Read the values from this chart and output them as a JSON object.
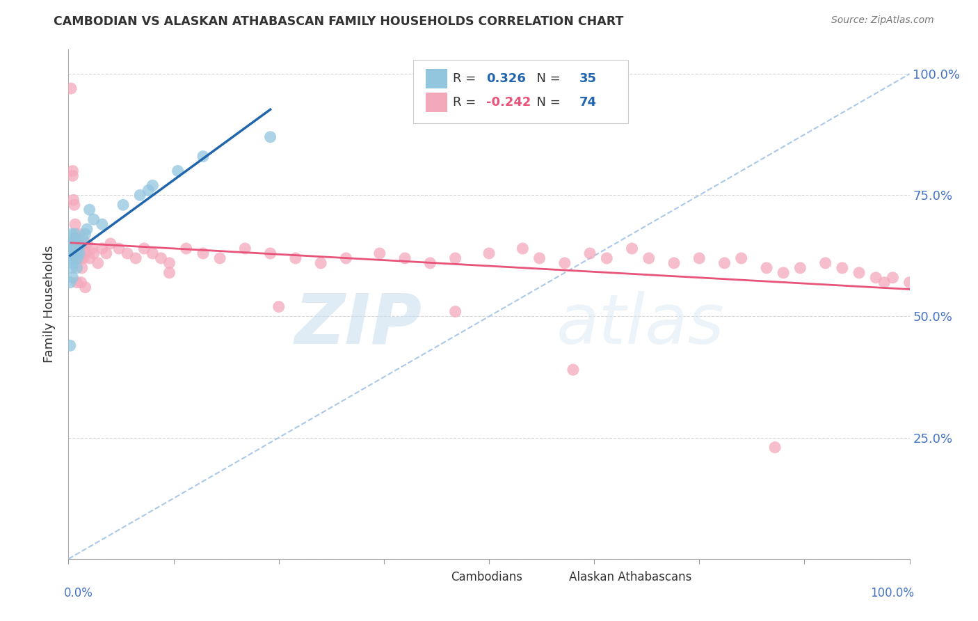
{
  "title": "CAMBODIAN VS ALASKAN ATHABASCAN FAMILY HOUSEHOLDS CORRELATION CHART",
  "source": "Source: ZipAtlas.com",
  "ylabel": "Family Households",
  "legend_blue_r": "0.326",
  "legend_blue_n": "35",
  "legend_pink_r": "-0.242",
  "legend_pink_n": "74",
  "legend_label_blue": "Cambodians",
  "legend_label_pink": "Alaskan Athabascans",
  "blue_color": "#92c5de",
  "pink_color": "#f4a9bb",
  "trend_blue_color": "#2166ac",
  "trend_pink_color": "#e8537a",
  "dashed_line_color": "#aac8e8",
  "watermark_zip": "ZIP",
  "watermark_atlas": "atlas",
  "blue_x": [
    0.002,
    0.002,
    0.003,
    0.003,
    0.004,
    0.004,
    0.005,
    0.005,
    0.005,
    0.006,
    0.006,
    0.007,
    0.007,
    0.008,
    0.008,
    0.009,
    0.01,
    0.01,
    0.011,
    0.012,
    0.013,
    0.015,
    0.017,
    0.02,
    0.022,
    0.025,
    0.03,
    0.04,
    0.065,
    0.085,
    0.095,
    0.1,
    0.13,
    0.16,
    0.24
  ],
  "blue_y": [
    0.44,
    0.57,
    0.62,
    0.65,
    0.6,
    0.67,
    0.64,
    0.58,
    0.61,
    0.63,
    0.65,
    0.63,
    0.66,
    0.62,
    0.67,
    0.65,
    0.64,
    0.6,
    0.62,
    0.64,
    0.63,
    0.65,
    0.66,
    0.67,
    0.68,
    0.72,
    0.7,
    0.69,
    0.73,
    0.75,
    0.76,
    0.77,
    0.8,
    0.83,
    0.87
  ],
  "pink_x": [
    0.003,
    0.005,
    0.006,
    0.007,
    0.008,
    0.009,
    0.01,
    0.011,
    0.012,
    0.013,
    0.014,
    0.015,
    0.016,
    0.018,
    0.019,
    0.02,
    0.022,
    0.025,
    0.028,
    0.03,
    0.035,
    0.04,
    0.045,
    0.05,
    0.06,
    0.07,
    0.08,
    0.09,
    0.1,
    0.11,
    0.12,
    0.14,
    0.16,
    0.18,
    0.21,
    0.24,
    0.27,
    0.3,
    0.33,
    0.37,
    0.4,
    0.43,
    0.46,
    0.5,
    0.54,
    0.56,
    0.59,
    0.62,
    0.64,
    0.67,
    0.69,
    0.72,
    0.75,
    0.78,
    0.8,
    0.83,
    0.85,
    0.87,
    0.9,
    0.92,
    0.94,
    0.96,
    0.97,
    0.98,
    1.0,
    0.005,
    0.01,
    0.015,
    0.02,
    0.12,
    0.25,
    0.46,
    0.6,
    0.84
  ],
  "pink_y": [
    0.97,
    0.79,
    0.74,
    0.73,
    0.69,
    0.66,
    0.62,
    0.63,
    0.65,
    0.67,
    0.64,
    0.62,
    0.6,
    0.62,
    0.64,
    0.63,
    0.65,
    0.62,
    0.64,
    0.63,
    0.61,
    0.64,
    0.63,
    0.65,
    0.64,
    0.63,
    0.62,
    0.64,
    0.63,
    0.62,
    0.61,
    0.64,
    0.63,
    0.62,
    0.64,
    0.63,
    0.62,
    0.61,
    0.62,
    0.63,
    0.62,
    0.61,
    0.62,
    0.63,
    0.64,
    0.62,
    0.61,
    0.63,
    0.62,
    0.64,
    0.62,
    0.61,
    0.62,
    0.61,
    0.62,
    0.6,
    0.59,
    0.6,
    0.61,
    0.6,
    0.59,
    0.58,
    0.57,
    0.58,
    0.57,
    0.8,
    0.57,
    0.57,
    0.56,
    0.59,
    0.52,
    0.51,
    0.39,
    0.23
  ]
}
